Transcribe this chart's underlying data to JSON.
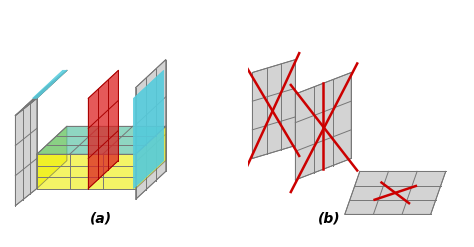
{
  "fig_width": 4.74,
  "fig_height": 2.47,
  "dpi": 100,
  "bg_color": "#ffffff",
  "label_a": "(a)",
  "label_b": "(b)",
  "label_fontsize": 10,
  "label_fontstyle": "italic",
  "label_fontweight": "bold",
  "grid_color": "#777777",
  "grid_lw": 0.7,
  "red_line_color": "#cc0000",
  "red_line_lw": 1.8,
  "plane_xy_color": "#44bb99",
  "plane_xz_color": "#eeee00",
  "plane_yz_color": "#dd2222",
  "cyan_color": "#55ccdd",
  "gray_plane_color": "#cccccc",
  "gray_plane_alpha": 0.85,
  "colored_plane_alpha": 0.6
}
